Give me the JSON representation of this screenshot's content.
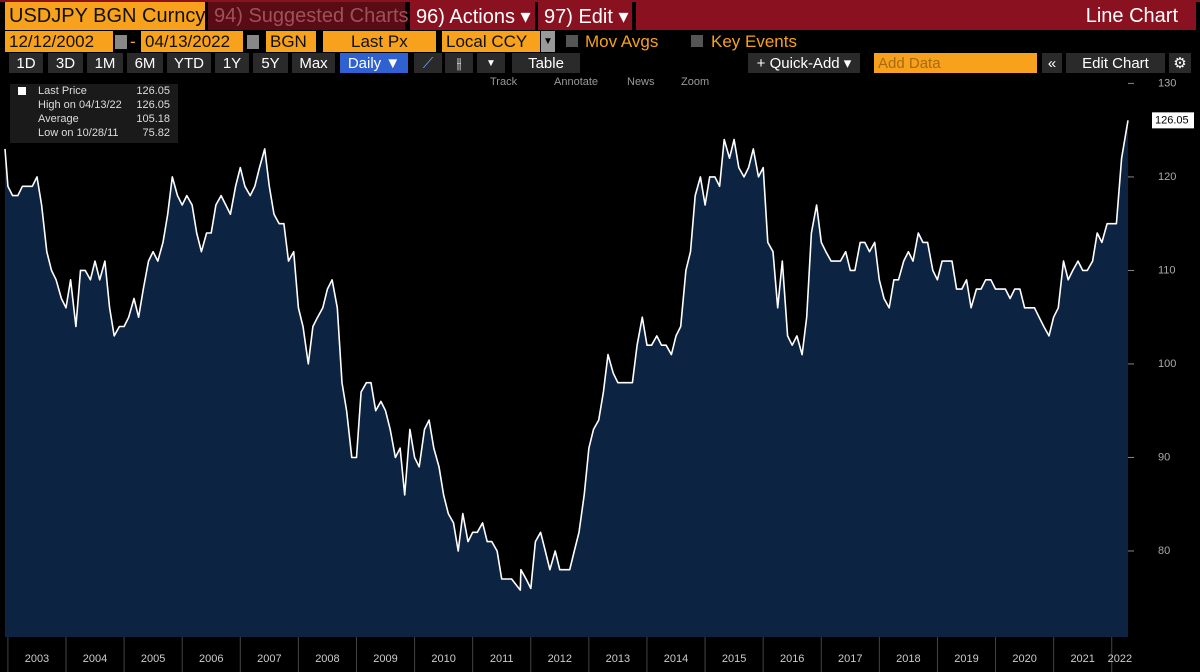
{
  "header": {
    "ticker": "USDJPY BGN Curncy",
    "suggested": "94) Suggested Charts",
    "actions": "96) Actions ▾",
    "edit": "97) Edit ▾",
    "view": "Line Chart"
  },
  "settings": {
    "start": "12/12/2002",
    "dash": "-",
    "end": "04/13/2022",
    "source": "BGN",
    "field": "Last Px",
    "currency": "Local CCY",
    "mov_avgs": "Mov Avgs",
    "key_events": "Key Events"
  },
  "toolbar": {
    "ranges": [
      "1D",
      "3D",
      "1M",
      "6M",
      "YTD",
      "1Y",
      "5Y",
      "Max"
    ],
    "frequency": "Daily ▼",
    "table": "Table",
    "quick_add": "+ Quick-Add ▾",
    "add_data": "Add Data",
    "edit_chart": "Edit Chart"
  },
  "tools": [
    "Track",
    "Annotate",
    "News",
    "Zoom"
  ],
  "legend_rows": [
    {
      "label": "High on 04/13/22",
      "value": "126.05"
    },
    {
      "label": "Average",
      "value": "105.18"
    },
    {
      "label": "Low on 10/28/11",
      "value": "75.82"
    }
  ],
  "chart_data": {
    "type": "line",
    "area_color": "#0c2342",
    "x": [
      2002.95,
      2003.0,
      2003.08,
      2003.17,
      2003.25,
      2003.33,
      2003.42,
      2003.5,
      2003.58,
      2003.67,
      2003.75,
      2003.83,
      2003.92,
      2004.0,
      2004.08,
      2004.17,
      2004.25,
      2004.33,
      2004.42,
      2004.5,
      2004.58,
      2004.67,
      2004.75,
      2004.83,
      2004.92,
      2005.0,
      2005.08,
      2005.17,
      2005.25,
      2005.33,
      2005.42,
      2005.5,
      2005.58,
      2005.67,
      2005.75,
      2005.83,
      2005.92,
      2006.0,
      2006.08,
      2006.17,
      2006.25,
      2006.33,
      2006.42,
      2006.5,
      2006.58,
      2006.67,
      2006.75,
      2006.83,
      2006.92,
      2007.0,
      2007.08,
      2007.17,
      2007.25,
      2007.33,
      2007.42,
      2007.5,
      2007.58,
      2007.67,
      2007.75,
      2007.83,
      2007.92,
      2008.0,
      2008.08,
      2008.17,
      2008.25,
      2008.33,
      2008.42,
      2008.5,
      2008.58,
      2008.67,
      2008.75,
      2008.83,
      2008.92,
      2009.0,
      2009.08,
      2009.17,
      2009.25,
      2009.33,
      2009.42,
      2009.5,
      2009.58,
      2009.67,
      2009.75,
      2009.83,
      2009.92,
      2010.0,
      2010.08,
      2010.17,
      2010.25,
      2010.33,
      2010.42,
      2010.5,
      2010.58,
      2010.67,
      2010.75,
      2010.83,
      2010.92,
      2011.0,
      2011.08,
      2011.17,
      2011.25,
      2011.33,
      2011.42,
      2011.5,
      2011.58,
      2011.67,
      2011.82,
      2011.83,
      2011.92,
      2012.0,
      2012.08,
      2012.17,
      2012.25,
      2012.33,
      2012.42,
      2012.5,
      2012.58,
      2012.67,
      2012.75,
      2012.83,
      2012.92,
      2013.0,
      2013.08,
      2013.17,
      2013.25,
      2013.33,
      2013.42,
      2013.5,
      2013.58,
      2013.67,
      2013.75,
      2013.83,
      2013.92,
      2014.0,
      2014.08,
      2014.17,
      2014.25,
      2014.33,
      2014.42,
      2014.5,
      2014.58,
      2014.67,
      2014.75,
      2014.83,
      2014.92,
      2015.0,
      2015.08,
      2015.17,
      2015.25,
      2015.33,
      2015.42,
      2015.5,
      2015.58,
      2015.67,
      2015.75,
      2015.83,
      2015.92,
      2016.0,
      2016.08,
      2016.17,
      2016.25,
      2016.33,
      2016.42,
      2016.5,
      2016.58,
      2016.67,
      2016.75,
      2016.83,
      2016.92,
      2017.0,
      2017.08,
      2017.17,
      2017.25,
      2017.33,
      2017.42,
      2017.5,
      2017.58,
      2017.67,
      2017.75,
      2017.83,
      2017.92,
      2018.0,
      2018.08,
      2018.17,
      2018.25,
      2018.33,
      2018.42,
      2018.5,
      2018.58,
      2018.67,
      2018.75,
      2018.83,
      2018.92,
      2019.0,
      2019.08,
      2019.17,
      2019.25,
      2019.33,
      2019.42,
      2019.5,
      2019.58,
      2019.67,
      2019.75,
      2019.83,
      2019.92,
      2020.0,
      2020.08,
      2020.17,
      2020.25,
      2020.33,
      2020.42,
      2020.5,
      2020.58,
      2020.67,
      2020.75,
      2020.83,
      2020.92,
      2021.0,
      2021.08,
      2021.17,
      2021.25,
      2021.33,
      2021.42,
      2021.5,
      2021.58,
      2021.67,
      2021.75,
      2021.83,
      2021.92,
      2022.0,
      2022.08,
      2022.17,
      2022.28
    ],
    "series": [
      {
        "name": "Last Price",
        "color": "#ffffff",
        "values": [
          123,
          119,
          118,
          118,
          119,
          119,
          119,
          120,
          117,
          112,
          110,
          109,
          107,
          106,
          109,
          104,
          110,
          110,
          109,
          111,
          109,
          111,
          106,
          103,
          104,
          104,
          105,
          107,
          105,
          108,
          111,
          112,
          111,
          113,
          116,
          120,
          118,
          117,
          118,
          117,
          114,
          112,
          114,
          114,
          117,
          118,
          117,
          116,
          119,
          121,
          119,
          118,
          119,
          121,
          123,
          119,
          116,
          115,
          115,
          111,
          112,
          106,
          104,
          100,
          104,
          105,
          106,
          108,
          109,
          106,
          98,
          95,
          90,
          90,
          97,
          98,
          98,
          95,
          96,
          95,
          93,
          90,
          91,
          86,
          93,
          90,
          89,
          93,
          94,
          91,
          89,
          86,
          84,
          83,
          80,
          84,
          81,
          82,
          82,
          83,
          81,
          81,
          80,
          77,
          77,
          77,
          75.82,
          78,
          77,
          76,
          81,
          82,
          80,
          78,
          80,
          78,
          78,
          78,
          80,
          82,
          86,
          91,
          93,
          94,
          97,
          101,
          99,
          98,
          98,
          98,
          98,
          102,
          105,
          102,
          102,
          103,
          102,
          102,
          101,
          103,
          104,
          110,
          112,
          118,
          120,
          117,
          120,
          120,
          119,
          124,
          122,
          124,
          121,
          120,
          121,
          123,
          120,
          121,
          113,
          112,
          106,
          111,
          103,
          102,
          103,
          101,
          105,
          114,
          117,
          113,
          112,
          111,
          111,
          111,
          112,
          110,
          110,
          113,
          113,
          112,
          113,
          109,
          107,
          106,
          109,
          109,
          111,
          112,
          111,
          114,
          113,
          113,
          110,
          109,
          111,
          111,
          111,
          108,
          108,
          109,
          106,
          108,
          108,
          109,
          109,
          108,
          108,
          108,
          107,
          108,
          108,
          106,
          106,
          106,
          105,
          104,
          103,
          105,
          106,
          111,
          109,
          110,
          111,
          110,
          110,
          111,
          114,
          113,
          115,
          115,
          115,
          122,
          126.05
        ]
      }
    ],
    "xlim": [
      2002.95,
      2022.28
    ],
    "ylim": [
      70.8,
      130.9
    ],
    "xticks": [
      2003,
      2004,
      2005,
      2006,
      2007,
      2008,
      2009,
      2010,
      2011,
      2012,
      2013,
      2014,
      2015,
      2016,
      2017,
      2018,
      2019,
      2020,
      2021,
      2022
    ],
    "yticks": [
      80,
      90,
      100,
      110,
      120,
      130
    ]
  }
}
